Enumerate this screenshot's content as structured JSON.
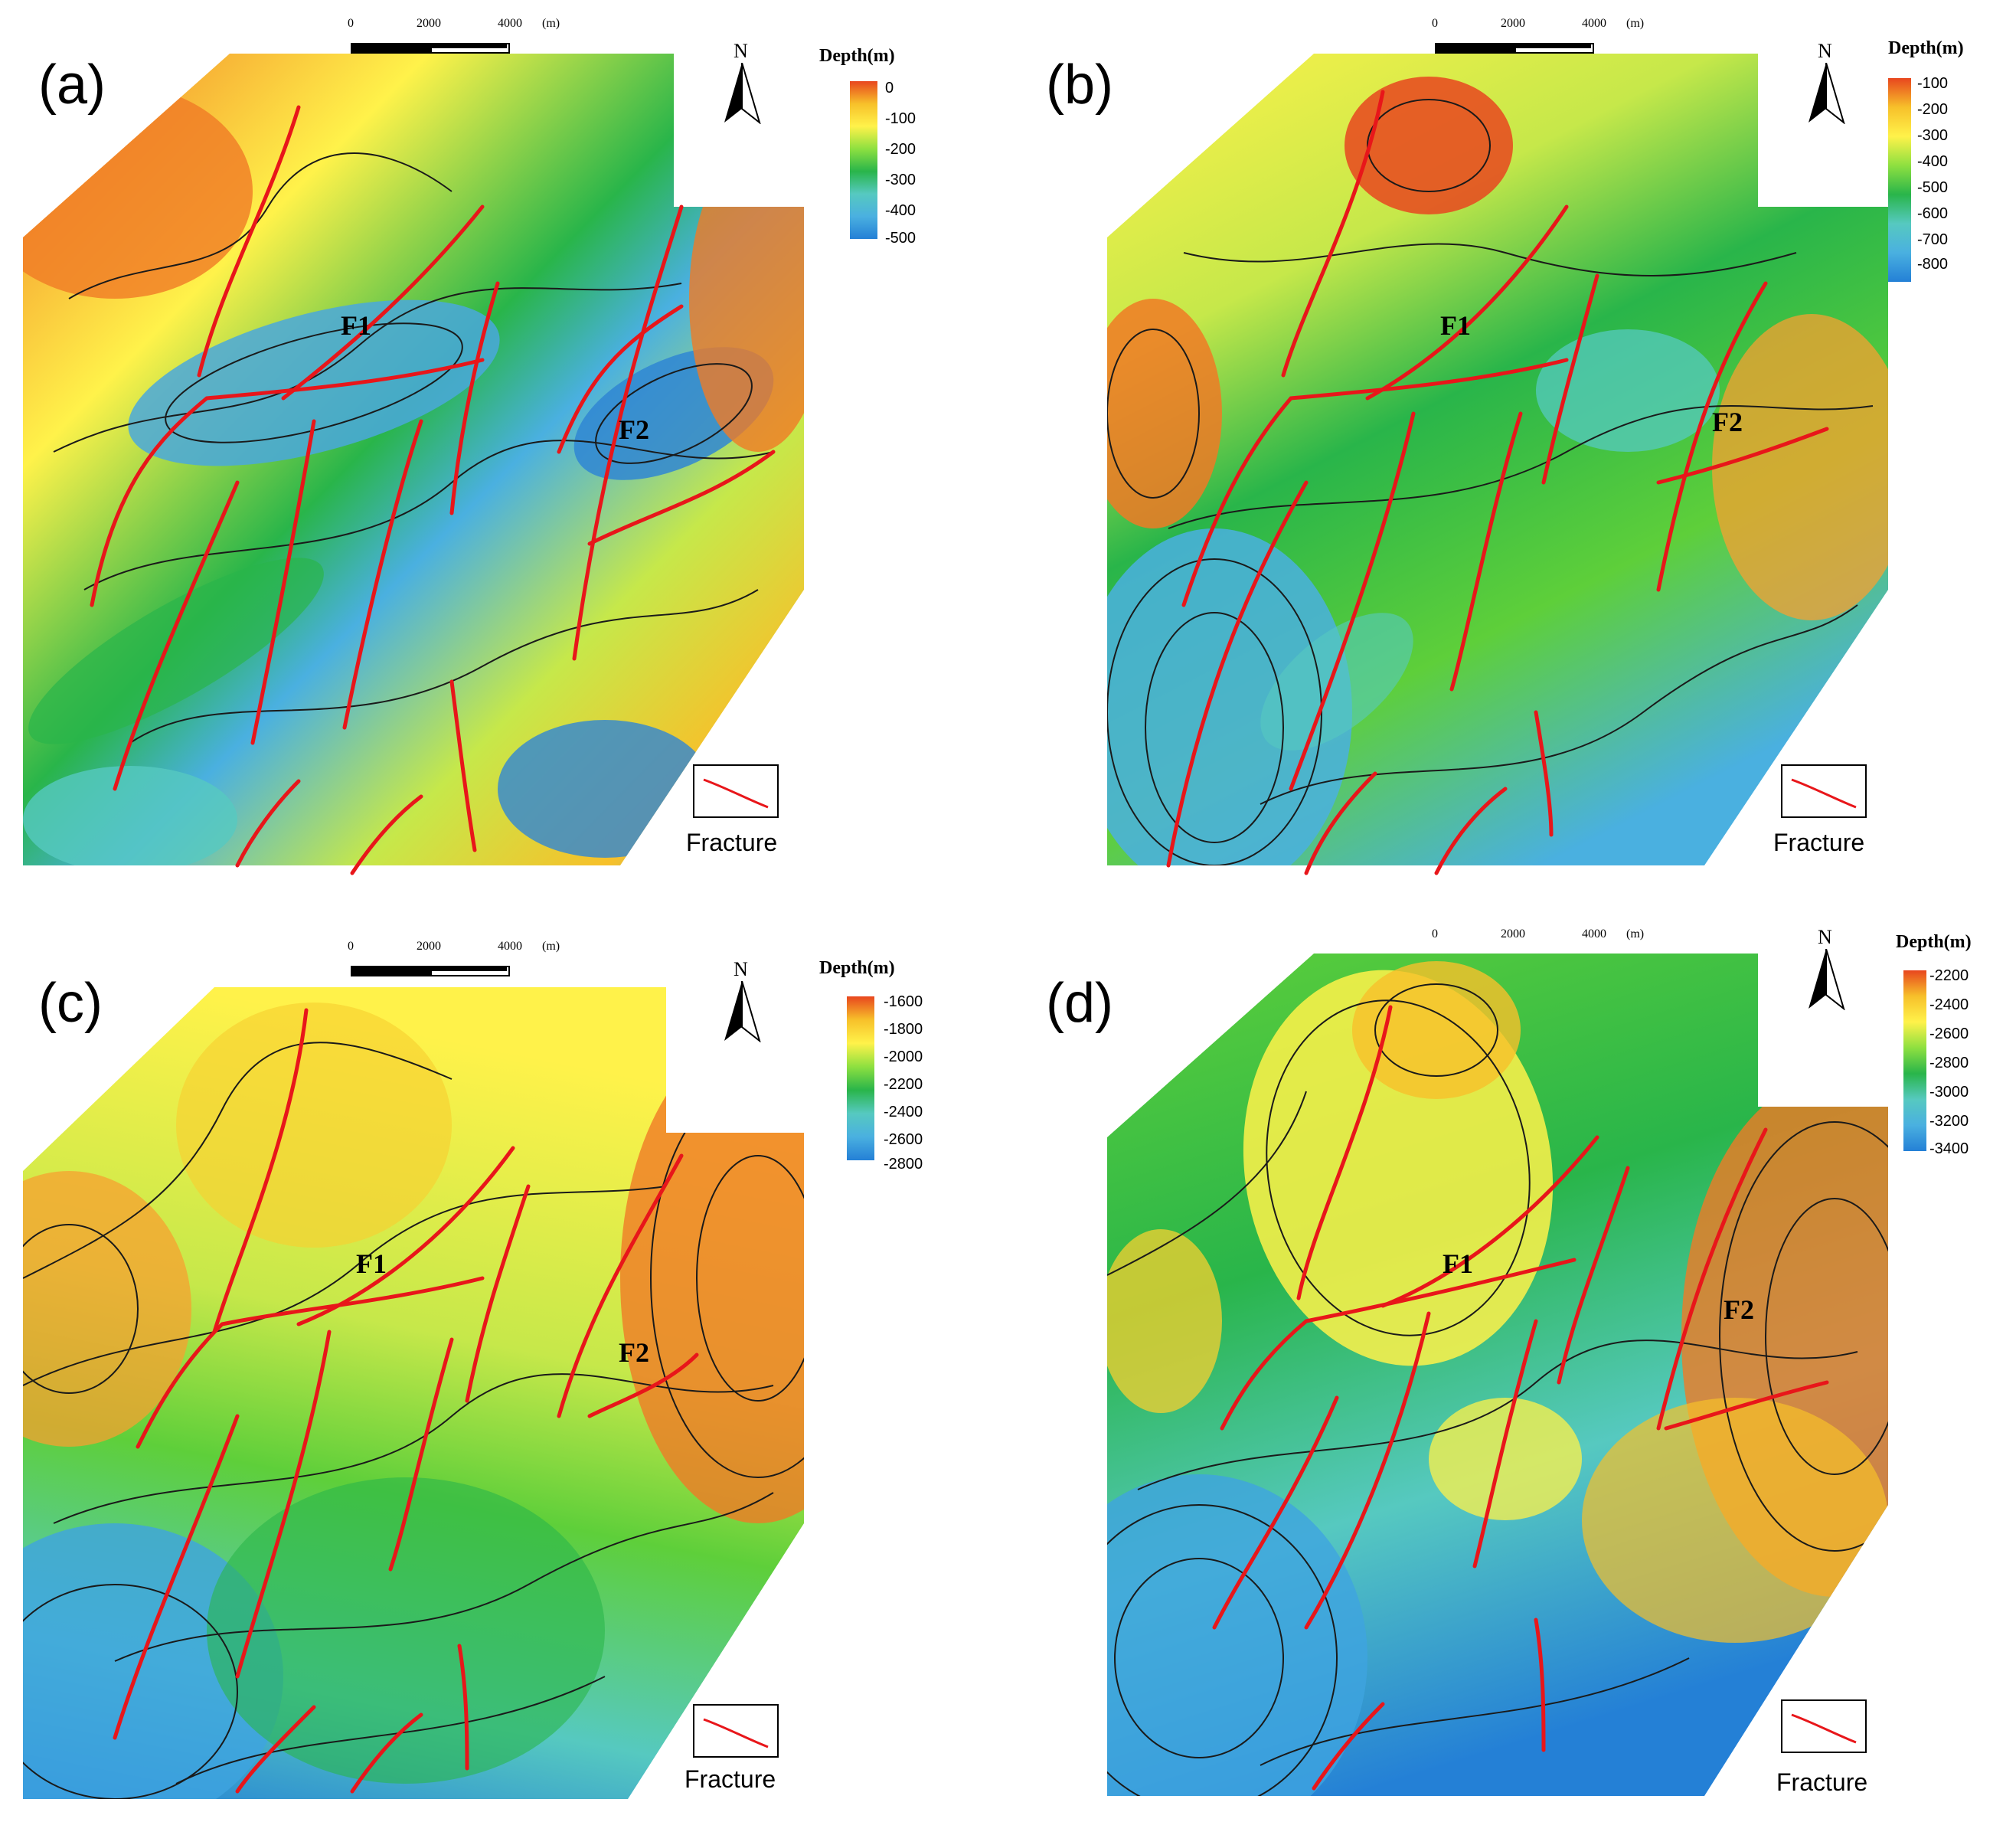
{
  "colors": {
    "fracture": "#e8161a",
    "contour": "#1a1a1a",
    "ramp": [
      "#e8461e",
      "#f07a25",
      "#f7c02a",
      "#fff24a",
      "#c6e84a",
      "#5ecf3a",
      "#29b54a",
      "#56c9c0",
      "#4ab0e0",
      "#2480d6"
    ]
  },
  "panels": [
    {
      "id": "a",
      "label": "(a)",
      "scale": {
        "ticks": [
          "0",
          "2000",
          "4000"
        ],
        "unit": "(m)"
      },
      "north": "N",
      "legend": {
        "title": "Depth(m)",
        "labels": [
          "0",
          "-100",
          "-200",
          "-300",
          "-400",
          "-500"
        ]
      },
      "faults": [
        "F1",
        "F2"
      ],
      "fracture_label": "Fracture",
      "icon": "north-arrow-icon"
    },
    {
      "id": "b",
      "label": "(b)",
      "scale": {
        "ticks": [
          "0",
          "2000",
          "4000"
        ],
        "unit": "(m)"
      },
      "north": "N",
      "legend": {
        "title": "Depth(m)",
        "labels": [
          "-100",
          "-200",
          "-300",
          "-400",
          "-500",
          "-600",
          "-700",
          "-800"
        ]
      },
      "faults": [
        "F1",
        "F2"
      ],
      "fracture_label": "Fracture",
      "icon": "north-arrow-icon"
    },
    {
      "id": "c",
      "label": "(c)",
      "scale": {
        "ticks": [
          "0",
          "2000",
          "4000"
        ],
        "unit": "(m)"
      },
      "north": "N",
      "legend": {
        "title": "Depth(m)",
        "labels": [
          "-1600",
          "-1800",
          "-2000",
          "-2200",
          "-2400",
          "-2600",
          "-2800"
        ]
      },
      "faults": [
        "F1",
        "F2"
      ],
      "fracture_label": "Fracture",
      "icon": "north-arrow-icon"
    },
    {
      "id": "d",
      "label": "(d)",
      "scale": {
        "ticks": [
          "0",
          "2000",
          "4000"
        ],
        "unit": "(m)"
      },
      "north": "N",
      "legend": {
        "title": "Depth(m)",
        "labels": [
          "-2200",
          "-2400",
          "-2600",
          "-2800",
          "-3000",
          "-3200",
          "-3400"
        ]
      },
      "faults": [
        "F1",
        "F2"
      ],
      "fracture_label": "Fracture",
      "icon": "north-arrow-icon"
    }
  ]
}
